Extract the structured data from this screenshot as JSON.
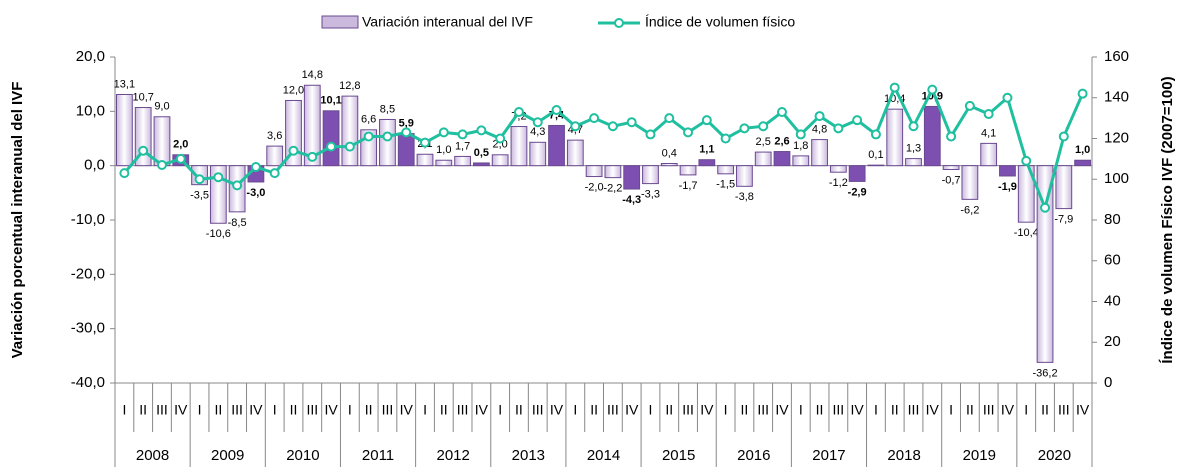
{
  "chart_data": {
    "type": "bar_line",
    "y_label": "Variación porcentual interanual del IVF",
    "y2_label": "Índice de volumen Físico IVF (2007=100)",
    "categories": [
      "I",
      "II",
      "III",
      "IV",
      "I",
      "II",
      "III",
      "IV",
      "I",
      "II",
      "III",
      "IV",
      "I",
      "II",
      "III",
      "IV",
      "I",
      "II",
      "III",
      "IV",
      "I",
      "II",
      "III",
      "IV",
      "I",
      "II",
      "III",
      "IV",
      "I",
      "II",
      "III",
      "IV",
      "I",
      "II",
      "III",
      "IV",
      "I",
      "II",
      "III",
      "IV",
      "I",
      "II",
      "III",
      "IV",
      "I",
      "II",
      "III",
      "IV",
      "I",
      "II",
      "III",
      "IV"
    ],
    "years": [
      "2008",
      "2009",
      "2010",
      "2011",
      "2012",
      "2013",
      "2014",
      "2015",
      "2016",
      "2017",
      "2018",
      "2019",
      "2020"
    ],
    "ylim": [
      -40,
      20
    ],
    "yticks": [
      {
        "value": -40,
        "label": "-40,0"
      },
      {
        "value": -30,
        "label": "-30,0"
      },
      {
        "value": -20,
        "label": "-20,0"
      },
      {
        "value": -10,
        "label": "-10,0"
      },
      {
        "value": 0,
        "label": "0,0"
      },
      {
        "value": 10,
        "label": "10,0"
      },
      {
        "value": 20,
        "label": "20,0"
      }
    ],
    "y2lim": [
      0,
      160
    ],
    "y2ticks": [
      0,
      20,
      40,
      60,
      80,
      100,
      120,
      140,
      160
    ],
    "series": [
      {
        "name": "Variación interanual del IVF",
        "type": "bar",
        "color": "#cbb9de",
        "highlight_color": "#7d4fb0",
        "values": [
          13.1,
          10.7,
          9.0,
          2.0,
          -3.5,
          -10.6,
          -8.5,
          -3.0,
          3.6,
          12.0,
          14.8,
          10.1,
          12.8,
          6.6,
          8.5,
          5.9,
          2.1,
          1.0,
          1.7,
          0.5,
          2.0,
          7.2,
          4.3,
          7.4,
          4.7,
          -2.0,
          -2.2,
          -4.3,
          -3.3,
          0.4,
          -1.7,
          1.1,
          -1.5,
          -3.8,
          2.5,
          2.6,
          1.8,
          4.8,
          -1.2,
          -2.9,
          0.1,
          10.4,
          1.3,
          10.9,
          -0.7,
          -6.2,
          4.1,
          -1.9,
          -10.4,
          -36.2,
          -7.9,
          1.0
        ],
        "value_labels": [
          "13,1",
          "10,7",
          "9,0",
          "2,0",
          "-3,5",
          "-10,6",
          "-8,5",
          "-3,0",
          "3,6",
          "12,0",
          "14,8",
          "10,1",
          "12,8",
          "6,6",
          "8,5",
          "5,9",
          "2,1",
          "1,0",
          "1,7",
          "0,5",
          "2,0",
          "7,2",
          "4,3",
          "7,4",
          "4,7",
          "-2,0",
          "-2,2",
          "-4,3",
          "-3,3",
          "0,4",
          "-1,7",
          "1,1",
          "-1,5",
          "-3,8",
          "2,5",
          "2,6",
          "1,8",
          "4,8",
          "-1,2",
          "-2,9",
          "0,1",
          "10,4",
          "1,3",
          "10,9",
          "-0,7",
          "-6,2",
          "4,1",
          "-1,9",
          "-10,4",
          "-36,2",
          "-7,9",
          "1,0"
        ]
      },
      {
        "name": "Índice de volumen físico",
        "type": "line",
        "axis": "y2",
        "color": "#1fbf9f",
        "values": [
          103,
          114,
          107,
          110,
          100,
          101,
          97,
          106,
          103,
          114,
          111,
          116,
          116,
          121,
          121,
          123,
          118,
          123,
          122,
          124,
          120,
          133,
          128,
          134,
          126,
          130,
          126,
          128,
          122,
          130,
          123,
          129,
          120,
          125,
          126,
          133,
          122,
          131,
          125,
          129,
          122,
          145,
          126,
          144,
          121,
          136,
          132,
          140,
          109,
          86,
          121,
          142
        ]
      }
    ]
  }
}
